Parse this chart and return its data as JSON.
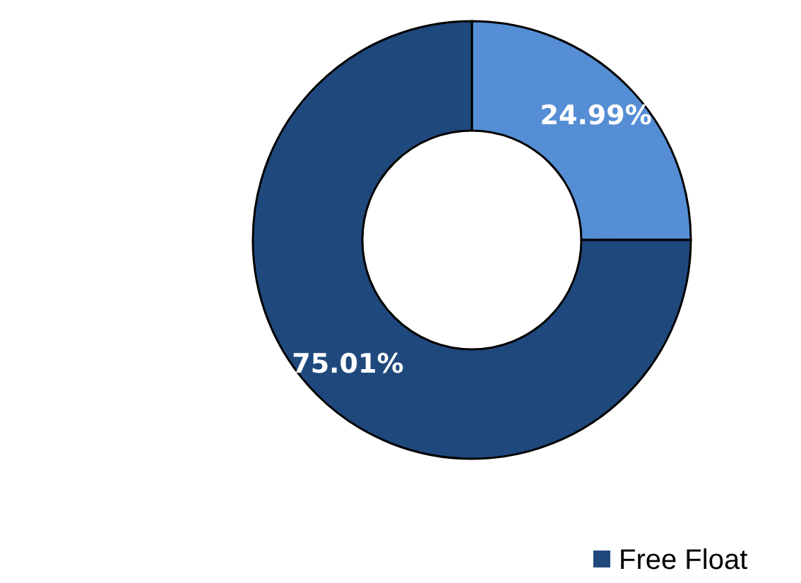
{
  "chart_data": {
    "type": "donut",
    "categories": [
      null,
      "Free Float"
    ],
    "values": [
      24.99,
      75.01
    ],
    "colors": [
      "#558ed5",
      "#1f497d"
    ],
    "value_labels": [
      "24.99%",
      "75.01%"
    ],
    "legend": "bottom"
  }
}
